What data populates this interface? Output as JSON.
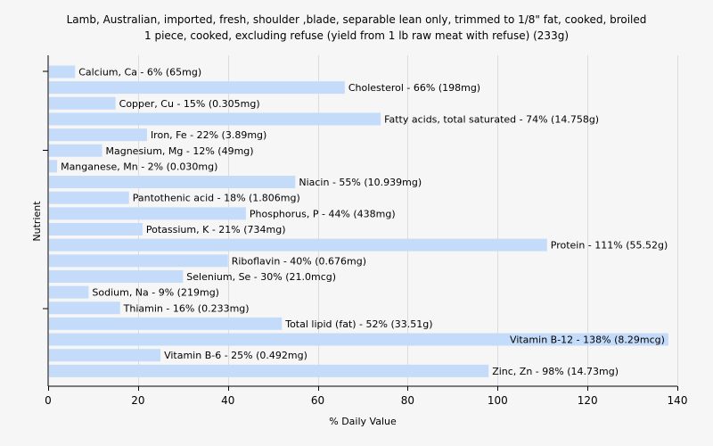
{
  "chart_data": {
    "type": "bar",
    "orientation": "horizontal",
    "title_line1": "Lamb, Australian, imported, fresh, shoulder ,blade, separable lean only, trimmed to 1/8\" fat, cooked, broiled",
    "title_line2": "1 piece, cooked, excluding refuse (yield from 1 lb raw meat with refuse) (233g)",
    "xlabel": "% Daily Value",
    "ylabel": "Nutrient",
    "xlim": [
      0,
      140
    ],
    "xticks": [
      0,
      20,
      40,
      60,
      80,
      100,
      120,
      140
    ],
    "grid": true,
    "bar_color": "#c4dcfa",
    "categories": [
      "Calcium, Ca",
      "Cholesterol",
      "Copper, Cu",
      "Fatty acids, total saturated",
      "Iron, Fe",
      "Magnesium, Mg",
      "Manganese, Mn",
      "Niacin",
      "Pantothenic acid",
      "Phosphorus, P",
      "Potassium, K",
      "Protein",
      "Riboflavin",
      "Selenium, Se",
      "Sodium, Na",
      "Thiamin",
      "Total lipid (fat)",
      "Vitamin B-12",
      "Vitamin B-6",
      "Zinc, Zn"
    ],
    "values": [
      6,
      66,
      15,
      74,
      22,
      12,
      2,
      55,
      18,
      44,
      21,
      111,
      40,
      30,
      9,
      16,
      52,
      138,
      25,
      98
    ],
    "labels": [
      "Calcium, Ca - 6% (65mg)",
      "Cholesterol - 66% (198mg)",
      "Copper, Cu - 15% (0.305mg)",
      "Fatty acids, total saturated - 74% (14.758g)",
      "Iron, Fe - 22% (3.89mg)",
      "Magnesium, Mg - 12% (49mg)",
      "Manganese, Mn - 2% (0.030mg)",
      "Niacin - 55% (10.939mg)",
      "Pantothenic acid - 18% (1.806mg)",
      "Phosphorus, P - 44% (438mg)",
      "Potassium, K - 21% (734mg)",
      "Protein - 111% (55.52g)",
      "Riboflavin - 40% (0.676mg)",
      "Selenium, Se - 30% (21.0mcg)",
      "Sodium, Na - 9% (219mg)",
      "Thiamin - 16% (0.233mg)",
      "Total lipid (fat) - 52% (33.51g)",
      "Vitamin B-12 - 138% (8.29mcg)",
      "Vitamin B-6 - 25% (0.492mg)",
      "Zinc, Zn - 98% (14.73mg)"
    ]
  }
}
